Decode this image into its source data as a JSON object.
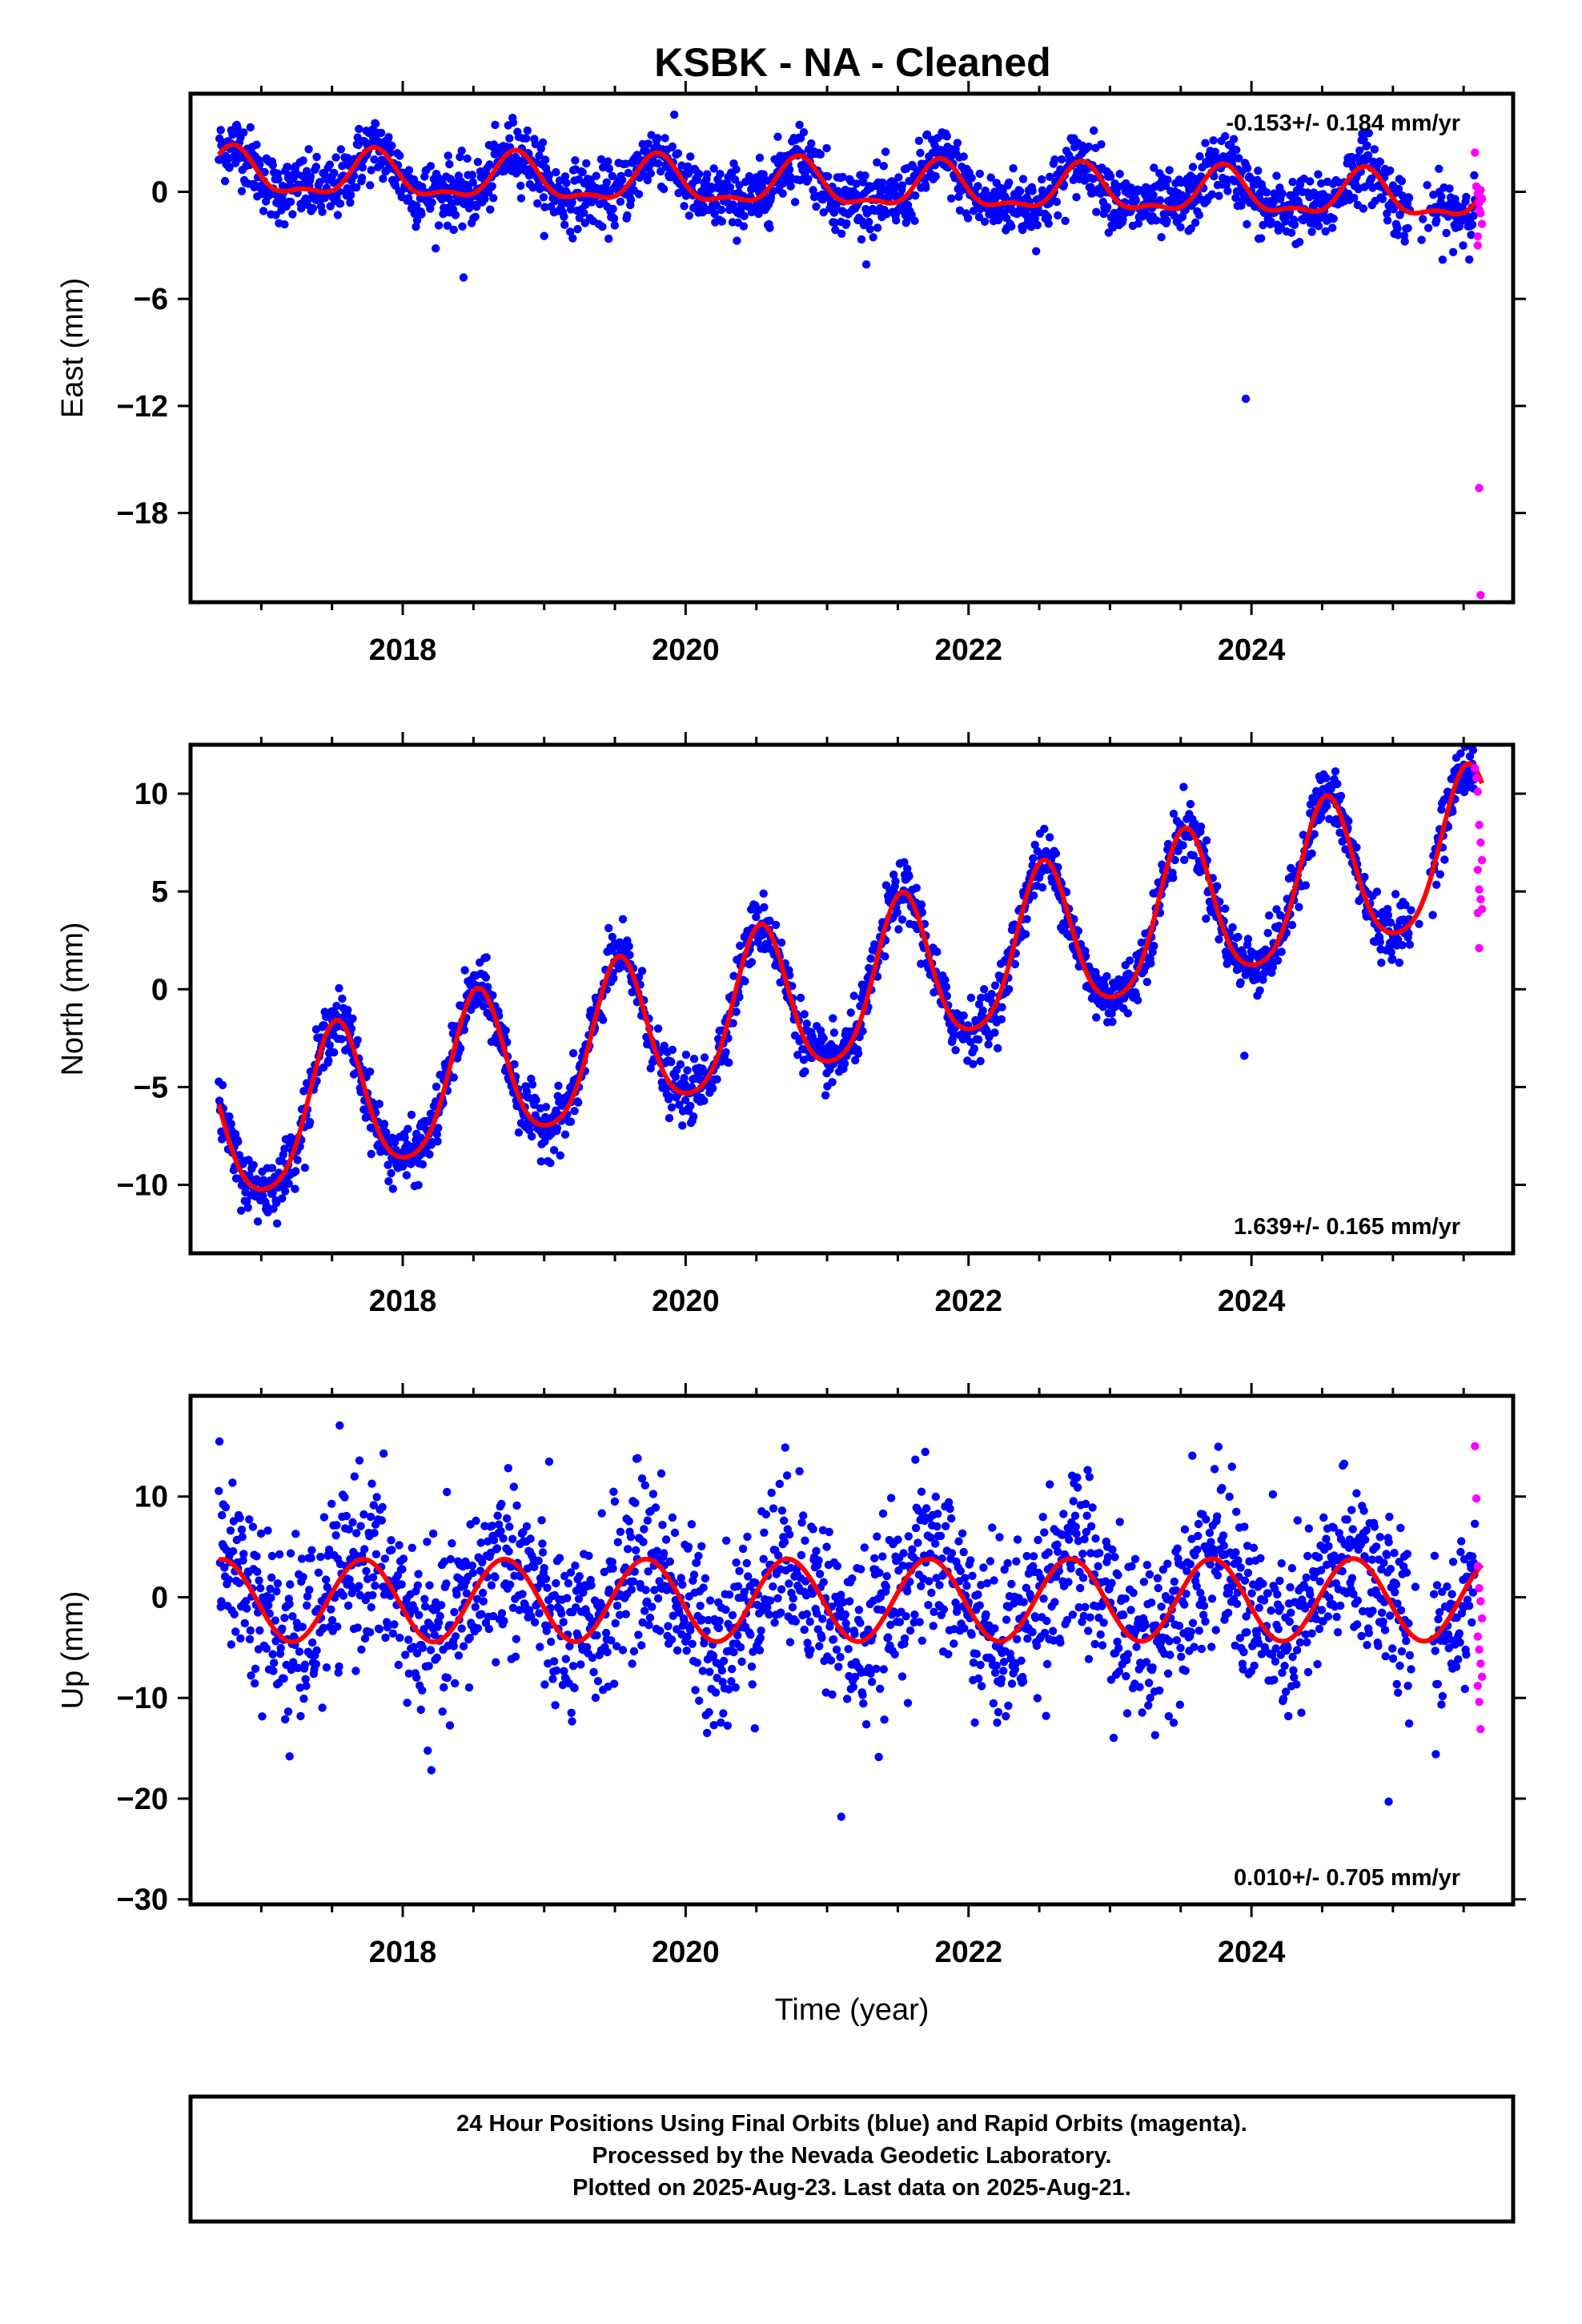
{
  "title": "KSBK  - NA - Cleaned",
  "footer": {
    "line1": "24 Hour Positions Using Final Orbits (blue) and Rapid Orbits (magenta).",
    "line2": "Processed by the Nevada Geodetic Laboratory.",
    "line3": "Plotted on 2025-Aug-23. Last data on 2025-Aug-21."
  },
  "colors": {
    "final": "#0000ff",
    "rapid": "#ff00ff",
    "model": "#ff0000"
  },
  "chart_data": [
    {
      "type": "scatter",
      "component": "east",
      "ylabel": "East (mm)",
      "xlabel": "",
      "xlim": [
        2016.5,
        2025.85
      ],
      "ylim": [
        -23,
        5.5
      ],
      "yticks": [
        -18,
        -12,
        -6,
        0
      ],
      "ytick_labels": [
        "−18",
        "−12",
        "−6",
        "0"
      ],
      "xticks": [
        2018,
        2020,
        2022,
        2024
      ],
      "xtick_labels": [
        "2018",
        "2020",
        "2022",
        "2024"
      ],
      "rate_text": "-0.153+/- 0.184 mm/yr",
      "rate_position": "top-right",
      "grid": false,
      "model": {
        "offset": 0.3,
        "rate": -0.153,
        "annual_amp": 1.2,
        "annual_phase_peak": 0.8,
        "semi_amp": 0.5,
        "t0": 2021.0
      },
      "final_points": {
        "t_start": 2016.7,
        "t_end": 2025.58,
        "scatter_sd": 0.9,
        "gap": [
          2025.12,
          2025.28
        ]
      },
      "rapid_points": {
        "x": [
          2025.58,
          2025.59,
          2025.6,
          2025.61,
          2025.62,
          2025.63,
          2025.6,
          2025.61,
          2025.62,
          2025.63,
          2025.6,
          2025.61,
          2025.62
        ],
        "y": [
          2.2,
          0.3,
          -0.1,
          -0.6,
          -1.2,
          -1.8,
          -2.5,
          -1.0,
          0.1,
          -0.4,
          -3.0,
          -16.6,
          -22.6
        ]
      },
      "outliers": {
        "x": [
          2023.96,
          2018.43
        ],
        "y": [
          -11.6,
          -4.8
        ]
      }
    },
    {
      "type": "scatter",
      "component": "north",
      "ylabel": "North (mm)",
      "xlabel": "",
      "xlim": [
        2016.5,
        2025.85
      ],
      "ylim": [
        -13.5,
        12.5
      ],
      "yticks": [
        -10,
        -5,
        0,
        5,
        10
      ],
      "ytick_labels": [
        "−10",
        "−5",
        "0",
        "5",
        "10"
      ],
      "xticks": [
        2018,
        2020,
        2022,
        2024
      ],
      "xtick_labels": [
        "2018",
        "2020",
        "2022",
        "2024"
      ],
      "rate_text": "1.639+/- 0.165 mm/yr",
      "rate_position": "bottom-right",
      "grid": false,
      "model": {
        "offset": -0.4,
        "rate": 1.639,
        "annual_amp": 3.9,
        "annual_phase_peak": 0.53,
        "semi_amp": 0.6,
        "t0": 2021.0
      },
      "final_points": {
        "t_start": 2016.7,
        "t_end": 2025.58,
        "scatter_sd": 0.75,
        "gap": [
          2025.12,
          2025.28
        ]
      },
      "rapid_points": {
        "x": [
          2025.58,
          2025.59,
          2025.6,
          2025.61,
          2025.62,
          2025.63,
          2025.6,
          2025.61,
          2025.62,
          2025.63,
          2025.6,
          2025.61
        ],
        "y": [
          11.3,
          10.8,
          10.1,
          8.4,
          7.5,
          6.6,
          6.1,
          5.1,
          4.6,
          4.1,
          3.9,
          2.1
        ]
      },
      "outliers": {
        "x": [
          2023.95
        ],
        "y": [
          -3.4
        ]
      }
    },
    {
      "type": "scatter",
      "component": "up",
      "ylabel": "Up (mm)",
      "xlabel": "Time (year)",
      "xlim": [
        2016.5,
        2025.85
      ],
      "ylim": [
        -30.5,
        20
      ],
      "yticks": [
        -30,
        -20,
        -10,
        0,
        10
      ],
      "ytick_labels": [
        "−30",
        "−20",
        "−10",
        "0",
        "10"
      ],
      "xticks": [
        2018,
        2020,
        2022,
        2024
      ],
      "xtick_labels": [
        "2018",
        "2020",
        "2022",
        "2024"
      ],
      "rate_text": "0.010+/- 0.705 mm/yr",
      "rate_position": "bottom-right",
      "grid": false,
      "model": {
        "offset": -0.3,
        "rate": 0.01,
        "annual_amp": 4.1,
        "annual_phase_peak": 0.72,
        "semi_amp": 0.0,
        "t0": 2021.0
      },
      "final_points": {
        "t_start": 2016.7,
        "t_end": 2025.58,
        "scatter_sd": 4.3,
        "gap": [
          2025.12,
          2025.28
        ]
      },
      "rapid_points": {
        "x": [
          2025.58,
          2025.59,
          2025.6,
          2025.61,
          2025.62,
          2025.63,
          2025.6,
          2025.61,
          2025.62,
          2025.63,
          2025.6,
          2025.61,
          2025.62
        ],
        "y": [
          15.0,
          9.8,
          3.1,
          0.9,
          -0.4,
          -2.1,
          -3.9,
          -5.2,
          -6.6,
          -7.9,
          -8.8,
          -10.4,
          -13.1
        ]
      },
      "outliers": {
        "x": [
          2021.1,
          2024.97,
          2017.2
        ],
        "y": [
          -21.8,
          -20.3,
          -15.8
        ]
      }
    }
  ]
}
